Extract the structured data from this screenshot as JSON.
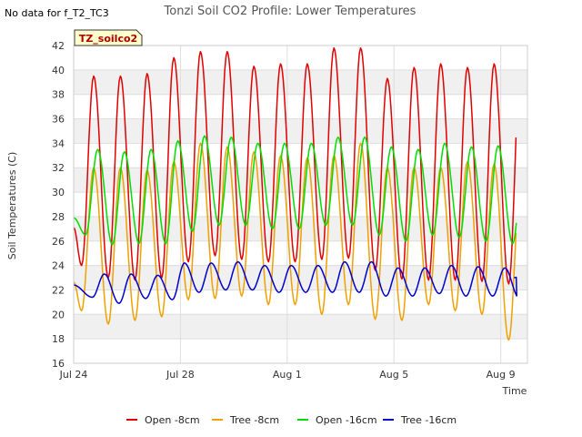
{
  "note": "No data for f_T2_TC3",
  "badge": "TZ_soilco2",
  "chart_data": {
    "type": "line",
    "title": "Tonzi Soil CO2 Profile: Lower Temperatures",
    "xlabel": "Time",
    "ylabel": "Soil Temperatures (C)",
    "ylim": [
      16,
      42
    ],
    "xlim": [
      0,
      17.0
    ],
    "yticks": [
      16,
      18,
      20,
      22,
      24,
      26,
      28,
      30,
      32,
      34,
      36,
      38,
      40,
      42
    ],
    "xticks": [
      {
        "value": 0,
        "label": "Jul 24"
      },
      {
        "value": 4,
        "label": "Jul 28"
      },
      {
        "value": 8,
        "label": "Aug 1"
      },
      {
        "value": 12,
        "label": "Aug 5"
      },
      {
        "value": 16,
        "label": "Aug 9"
      }
    ],
    "grid": true,
    "legend_position": "bottom",
    "series": [
      {
        "name": "Open -8cm",
        "color": "#e00000",
        "day_start": 0.3,
        "mins": [
          24.0,
          23.0,
          22.8,
          23.0,
          24.3,
          24.8,
          24.5,
          24.3,
          24.3,
          24.5,
          24.6,
          23.6,
          22.9,
          22.8,
          22.8,
          22.7,
          22.5,
          22.5
        ],
        "maxs": [
          39.5,
          39.5,
          39.7,
          41.0,
          41.5,
          41.5,
          40.3,
          40.5,
          40.5,
          41.8,
          41.8,
          39.3,
          40.2,
          40.5,
          40.2,
          40.5,
          40.8
        ],
        "end_value": 26.8
      },
      {
        "name": "Tree -8cm",
        "color": "#f0a000",
        "day_start": 0.3,
        "mins": [
          20.3,
          19.2,
          19.5,
          19.8,
          21.2,
          21.3,
          21.5,
          20.8,
          20.8,
          20.0,
          20.8,
          19.6,
          19.5,
          20.8,
          20.3,
          20.0,
          17.9,
          18.0
        ],
        "maxs": [
          32.0,
          32.0,
          31.8,
          32.5,
          34.0,
          33.7,
          33.3,
          33.0,
          32.8,
          33.0,
          34.0,
          32.0,
          32.0,
          32.0,
          32.5,
          32.3,
          31.3
        ],
        "end_value": 21.8
      },
      {
        "name": "Open -16cm",
        "color": "#00dd00",
        "day_start": 0.45,
        "mins": [
          26.5,
          25.7,
          25.8,
          25.8,
          26.8,
          27.3,
          27.3,
          27.0,
          27.0,
          27.3,
          27.3,
          26.5,
          26.0,
          26.5,
          26.3,
          26.0,
          25.8,
          26.0
        ],
        "maxs": [
          33.5,
          33.3,
          33.5,
          34.2,
          34.6,
          34.5,
          34.0,
          34.0,
          34.0,
          34.5,
          34.5,
          33.7,
          33.5,
          34.0,
          33.7,
          33.8,
          34.0
        ],
        "end_value": 29.3
      },
      {
        "name": "Tree -16cm",
        "color": "#0000cc",
        "day_start": 0.7,
        "mins": [
          21.4,
          20.9,
          21.3,
          21.2,
          21.8,
          22.0,
          22.0,
          21.8,
          21.8,
          21.8,
          21.8,
          21.5,
          21.5,
          21.7,
          21.5,
          21.5,
          21.3
        ],
        "maxs": [
          23.3,
          23.3,
          23.2,
          24.2,
          24.2,
          24.3,
          24.0,
          24.0,
          24.0,
          24.3,
          24.3,
          23.8,
          23.8,
          24.0,
          23.9,
          23.8,
          24.0
        ],
        "start_value": 22.4,
        "end_value": 23.0
      }
    ]
  }
}
